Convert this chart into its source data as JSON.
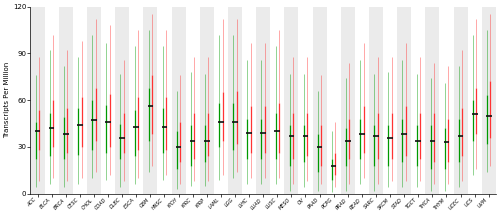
{
  "cancer_types": [
    "ACC",
    "BLCA",
    "BRCA",
    "CESC",
    "CHOL",
    "COAD",
    "DLBC",
    "ESCA",
    "GBM",
    "HNSC",
    "KICH",
    "KIRC",
    "KIRP",
    "LAML",
    "LGG",
    "LIHC",
    "LUAD",
    "LUSC",
    "MESO",
    "OV",
    "PAAD",
    "PCPG",
    "PRAD",
    "READ",
    "SARC",
    "SKCM",
    "STAD",
    "TGCT",
    "THCA",
    "THYM",
    "UCEC",
    "UCS",
    "UVM"
  ],
  "tumor_median": [
    40,
    42,
    38,
    44,
    47,
    46,
    36,
    43,
    56,
    43,
    30,
    34,
    34,
    46,
    46,
    39,
    39,
    40,
    37,
    37,
    30,
    18,
    34,
    38,
    37,
    36,
    38,
    34,
    34,
    33,
    37,
    51,
    50
  ],
  "tumor_q1": [
    28,
    30,
    26,
    30,
    34,
    30,
    26,
    28,
    38,
    28,
    20,
    22,
    24,
    34,
    32,
    26,
    26,
    26,
    22,
    24,
    18,
    12,
    22,
    26,
    22,
    22,
    24,
    22,
    20,
    20,
    24,
    38,
    36
  ],
  "tumor_q3": [
    54,
    60,
    55,
    62,
    68,
    64,
    52,
    62,
    76,
    62,
    46,
    52,
    52,
    65,
    66,
    56,
    56,
    58,
    52,
    52,
    44,
    26,
    48,
    56,
    52,
    52,
    56,
    52,
    52,
    48,
    55,
    68,
    72
  ],
  "tumor_max": [
    88,
    102,
    92,
    98,
    112,
    108,
    86,
    105,
    115,
    105,
    76,
    88,
    88,
    112,
    112,
    97,
    97,
    105,
    88,
    88,
    76,
    46,
    84,
    97,
    88,
    88,
    97,
    88,
    84,
    82,
    92,
    112,
    115
  ],
  "tumor_min": [
    8,
    10,
    8,
    10,
    14,
    12,
    8,
    10,
    18,
    12,
    6,
    8,
    8,
    12,
    14,
    10,
    10,
    10,
    6,
    8,
    6,
    4,
    6,
    10,
    6,
    8,
    8,
    8,
    6,
    6,
    8,
    16,
    18
  ],
  "normal_median": [
    34,
    36,
    36,
    39,
    40,
    40,
    32,
    38,
    50,
    40,
    26,
    30,
    30,
    41,
    42,
    34,
    34,
    36,
    33,
    33,
    26,
    15,
    30,
    34,
    33,
    32,
    34,
    30,
    30,
    30,
    33,
    47,
    46
  ],
  "normal_q1": [
    22,
    24,
    22,
    25,
    28,
    26,
    22,
    24,
    34,
    26,
    16,
    18,
    20,
    30,
    28,
    22,
    22,
    22,
    18,
    20,
    14,
    9,
    18,
    22,
    18,
    18,
    20,
    18,
    16,
    16,
    20,
    34,
    32
  ],
  "normal_q3": [
    46,
    52,
    49,
    55,
    60,
    57,
    45,
    54,
    68,
    55,
    40,
    44,
    44,
    58,
    58,
    48,
    48,
    52,
    44,
    44,
    38,
    22,
    42,
    48,
    44,
    44,
    48,
    44,
    44,
    42,
    48,
    60,
    63
  ],
  "normal_max": [
    76,
    92,
    82,
    88,
    102,
    97,
    77,
    95,
    105,
    95,
    66,
    78,
    77,
    102,
    102,
    86,
    86,
    95,
    77,
    77,
    66,
    40,
    74,
    86,
    77,
    78,
    86,
    77,
    74,
    71,
    82,
    102,
    105
  ],
  "normal_min": [
    4,
    6,
    4,
    6,
    10,
    9,
    4,
    6,
    14,
    9,
    3,
    5,
    5,
    9,
    10,
    6,
    6,
    6,
    2,
    4,
    2,
    1,
    2,
    6,
    2,
    4,
    4,
    4,
    2,
    2,
    4,
    12,
    14
  ],
  "ylabel": "Transcripts Per Million",
  "ylim": [
    0,
    120
  ],
  "yticks": [
    0,
    30,
    60,
    90,
    120
  ],
  "bg_colors": [
    "#ebebeb",
    "#ffffff"
  ],
  "tumor_color": "#ff3333",
  "normal_color": "#009900",
  "median_color": "#111111",
  "seed": 12345
}
